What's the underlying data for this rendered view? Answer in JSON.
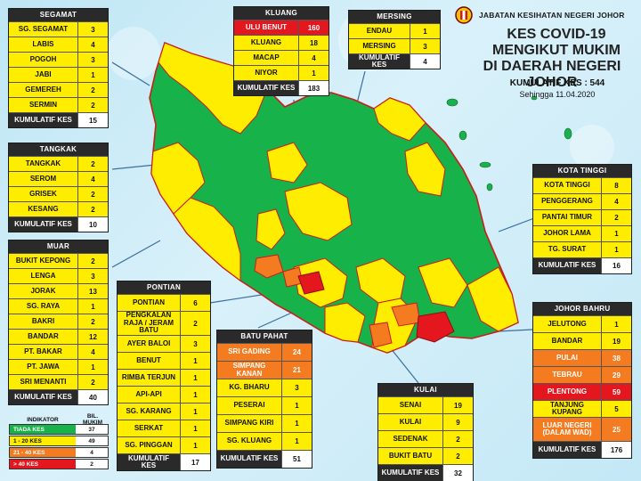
{
  "header": {
    "agency": "JABATAN KESIHATAN NEGERI JOHOR",
    "title_line1": "KES COVID-19",
    "title_line2": "MENGIKUT MUKIM",
    "title_line3": "DI DAERAH NEGERI JOHOR",
    "cumulative": "KUMULATIF KES : 544",
    "as_of": "Sehingga 11.04.2020"
  },
  "colors": {
    "none": "#17b34a",
    "low": "#ffed00",
    "mid": "#f47b20",
    "high": "#e4171e",
    "header": "#2a2a2a",
    "sea": "#c4e8f6"
  },
  "legend": {
    "col_indicator": "INDIKATOR",
    "col_count": "BIL. MUKIM",
    "rows": [
      {
        "label": "TIADA KES",
        "count": "37",
        "color": "green"
      },
      {
        "label": "1 - 20 KES",
        "count": "49",
        "color": "yellow"
      },
      {
        "label": "21 - 40 KES",
        "count": "4",
        "color": "orange"
      },
      {
        "label": "> 40 KES",
        "count": "2",
        "color": "red"
      }
    ]
  },
  "districts": {
    "segamat": {
      "name": "SEGAMAT",
      "rows": [
        {
          "name": "SG. SEGAMAT",
          "value": "3",
          "color": "yellow"
        },
        {
          "name": "LABIS",
          "value": "4",
          "color": "yellow"
        },
        {
          "name": "POGOH",
          "value": "3",
          "color": "yellow"
        },
        {
          "name": "JABI",
          "value": "1",
          "color": "yellow"
        },
        {
          "name": "GEMEREH",
          "value": "2",
          "color": "yellow"
        },
        {
          "name": "SERMIN",
          "value": "2",
          "color": "yellow"
        }
      ],
      "total_label": "KUMULATIF KES",
      "total": "15"
    },
    "tangkak": {
      "name": "TANGKAK",
      "rows": [
        {
          "name": "TANGKAK",
          "value": "2",
          "color": "yellow"
        },
        {
          "name": "SEROM",
          "value": "4",
          "color": "yellow"
        },
        {
          "name": "GRISEK",
          "value": "2",
          "color": "yellow"
        },
        {
          "name": "KESANG",
          "value": "2",
          "color": "yellow"
        }
      ],
      "total_label": "KUMULATIF KES",
      "total": "10"
    },
    "muar": {
      "name": "MUAR",
      "rows": [
        {
          "name": "BUKIT KEPONG",
          "value": "2",
          "color": "yellow"
        },
        {
          "name": "LENGA",
          "value": "3",
          "color": "yellow"
        },
        {
          "name": "JORAK",
          "value": "13",
          "color": "yellow"
        },
        {
          "name": "SG. RAYA",
          "value": "1",
          "color": "yellow"
        },
        {
          "name": "BAKRI",
          "value": "2",
          "color": "yellow"
        },
        {
          "name": "BANDAR",
          "value": "12",
          "color": "yellow"
        },
        {
          "name": "PT. BAKAR",
          "value": "4",
          "color": "yellow"
        },
        {
          "name": "PT. JAWA",
          "value": "1",
          "color": "yellow"
        },
        {
          "name": "SRI MENANTI",
          "value": "2",
          "color": "yellow"
        }
      ],
      "total_label": "KUMULATIF KES",
      "total": "40"
    },
    "kluang": {
      "name": "KLUANG",
      "rows": [
        {
          "name": "ULU BENUT",
          "value": "160",
          "color": "red"
        },
        {
          "name": "KLUANG",
          "value": "18",
          "color": "yellow"
        },
        {
          "name": "MACAP",
          "value": "4",
          "color": "yellow"
        },
        {
          "name": "NIYOR",
          "value": "1",
          "color": "yellow"
        }
      ],
      "total_label": "KUMULATIF KES",
      "total": "183"
    },
    "mersing": {
      "name": "MERSING",
      "rows": [
        {
          "name": "ENDAU",
          "value": "1",
          "color": "yellow"
        },
        {
          "name": "MERSING",
          "value": "3",
          "color": "yellow"
        }
      ],
      "total_label": "KUMULATIF KES",
      "total": "4"
    },
    "kota_tinggi": {
      "name": "KOTA TINGGI",
      "rows": [
        {
          "name": "KOTA TINGGI",
          "value": "8",
          "color": "yellow"
        },
        {
          "name": "PENGGERANG",
          "value": "4",
          "color": "yellow"
        },
        {
          "name": "PANTAI TIMUR",
          "value": "2",
          "color": "yellow"
        },
        {
          "name": "JOHOR LAMA",
          "value": "1",
          "color": "yellow"
        },
        {
          "name": "TG. SURAT",
          "value": "1",
          "color": "yellow"
        }
      ],
      "total_label": "KUMULATIF KES",
      "total": "16"
    },
    "pontian": {
      "name": "PONTIAN",
      "rows": [
        {
          "name": "PONTIAN",
          "value": "6",
          "color": "yellow"
        },
        {
          "name": "PENGKALAN RAJA / JERAM BATU",
          "value": "2",
          "color": "yellow"
        },
        {
          "name": "AYER BALOI",
          "value": "3",
          "color": "yellow"
        },
        {
          "name": "BENUT",
          "value": "1",
          "color": "yellow"
        },
        {
          "name": "RIMBA TERJUN",
          "value": "1",
          "color": "yellow"
        },
        {
          "name": "API-API",
          "value": "1",
          "color": "yellow"
        },
        {
          "name": "SG. KARANG",
          "value": "1",
          "color": "yellow"
        },
        {
          "name": "SERKAT",
          "value": "1",
          "color": "yellow"
        },
        {
          "name": "SG. PINGGAN",
          "value": "1",
          "color": "yellow"
        }
      ],
      "total_label": "KUMULATIF KES",
      "total": "17"
    },
    "batu_pahat": {
      "name": "BATU PAHAT",
      "rows": [
        {
          "name": "SRI GADING",
          "value": "24",
          "color": "orange"
        },
        {
          "name": "SIMPANG KANAN",
          "value": "21",
          "color": "orange"
        },
        {
          "name": "KG. BHARU",
          "value": "3",
          "color": "yellow"
        },
        {
          "name": "PESERAI",
          "value": "1",
          "color": "yellow"
        },
        {
          "name": "SIMPANG KIRI",
          "value": "1",
          "color": "yellow"
        },
        {
          "name": "SG. KLUANG",
          "value": "1",
          "color": "yellow"
        }
      ],
      "total_label": "KUMULATIF KES",
      "total": "51"
    },
    "kulai": {
      "name": "KULAI",
      "rows": [
        {
          "name": "SENAI",
          "value": "19",
          "color": "yellow"
        },
        {
          "name": "KULAI",
          "value": "9",
          "color": "yellow"
        },
        {
          "name": "SEDENAK",
          "value": "2",
          "color": "yellow"
        },
        {
          "name": "BUKIT BATU",
          "value": "2",
          "color": "yellow"
        }
      ],
      "total_label": "KUMULATIF KES",
      "total": "32"
    },
    "johor_bahru": {
      "name": "JOHOR BAHRU",
      "rows": [
        {
          "name": "JELUTONG",
          "value": "1",
          "color": "yellow"
        },
        {
          "name": "BANDAR",
          "value": "19",
          "color": "yellow"
        },
        {
          "name": "PULAI",
          "value": "38",
          "color": "orange"
        },
        {
          "name": "TEBRAU",
          "value": "29",
          "color": "orange"
        },
        {
          "name": "PLENTONG",
          "value": "59",
          "color": "red"
        },
        {
          "name": "TANJUNG KUPANG",
          "value": "5",
          "color": "yellow"
        },
        {
          "name": "LUAR NEGERI (DALAM WAD)",
          "value": "25",
          "color": "orange"
        }
      ],
      "total_label": "KUMULATIF KES",
      "total": "176"
    }
  }
}
